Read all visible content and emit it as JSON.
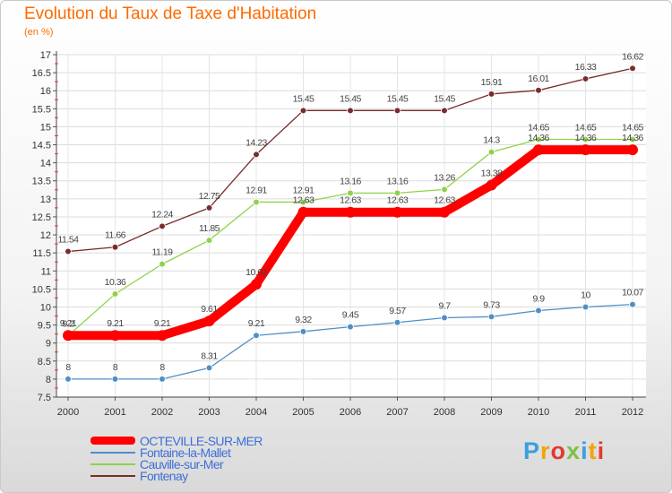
{
  "title": "Evolution du Taux de Taxe d'Habitation",
  "unit_label": "(en %)",
  "logo": {
    "parts": [
      "P",
      "r",
      "o",
      "x",
      "i",
      "t",
      "i"
    ],
    "colors": [
      "#3aa0dc",
      "#f2a400",
      "#e23a2d",
      "#7dc242",
      "#3aa0dc",
      "#f2a400",
      "#e23a2d"
    ]
  },
  "chart_data": {
    "type": "line",
    "x": [
      "2000",
      "2001",
      "2002",
      "2003",
      "2004",
      "2005",
      "2006",
      "2007",
      "2008",
      "2009",
      "2010",
      "2011",
      "2012"
    ],
    "ylim": [
      7.5,
      17
    ],
    "yticks": [
      "7.5",
      "8",
      "8.5",
      "9",
      "9.5",
      "10",
      "10.5",
      "11",
      "11.5",
      "12",
      "12.5",
      "13",
      "13.5",
      "14",
      "14.5",
      "15",
      "15.5",
      "16",
      "16.5",
      "17"
    ],
    "grid": true,
    "series": [
      {
        "name": "OCTEVILLE-SUR-MER",
        "color": "#ff0000",
        "values": [
          9.21,
          9.21,
          9.21,
          9.61,
          10.63,
          12.63,
          12.63,
          12.63,
          12.63,
          13.38,
          14.36,
          14.36,
          14.36
        ],
        "labels": [
          "9.21",
          "9.21",
          "9.21",
          "9.61",
          "10.63",
          "12.63",
          "12.63",
          "12.63",
          "12.63",
          "13.38",
          "14.36",
          "14.36",
          "14.36"
        ]
      },
      {
        "name": "Fontaine-la-Mallet",
        "color": "#4f8fc8",
        "values": [
          8,
          8,
          8,
          8.31,
          9.21,
          9.32,
          9.45,
          9.57,
          9.7,
          9.73,
          9.9,
          10,
          10.07
        ],
        "labels": [
          "8",
          "8",
          "8",
          "8.31",
          "9.21",
          "9.32",
          "9.45",
          "9.57",
          "9.7",
          "9.73",
          "9.9",
          "10",
          "10.07"
        ]
      },
      {
        "name": "Cauville-sur-Mer",
        "color": "#8fd24a",
        "values": [
          9.2,
          10.36,
          11.19,
          11.85,
          12.91,
          12.91,
          13.16,
          13.16,
          13.26,
          14.3,
          14.65,
          14.65,
          14.65
        ],
        "labels": [
          "9.2",
          "10.36",
          "11.19",
          "11.85",
          "12.91",
          "12.91",
          "13.16",
          "13.16",
          "13.26",
          "14.3",
          "14.65",
          "14.65",
          "14.65"
        ]
      },
      {
        "name": "Fontenay",
        "color": "#7a2c2c",
        "values": [
          11.54,
          11.66,
          12.24,
          12.75,
          14.23,
          15.45,
          15.45,
          15.45,
          15.45,
          15.91,
          16.01,
          16.33,
          16.62
        ],
        "labels": [
          "11.54",
          "11.66",
          "12.24",
          "12.75",
          "14.23",
          "15.45",
          "15.45",
          "15.45",
          "15.45",
          "15.91",
          "16.01",
          "16.33",
          "16.62"
        ]
      }
    ]
  }
}
